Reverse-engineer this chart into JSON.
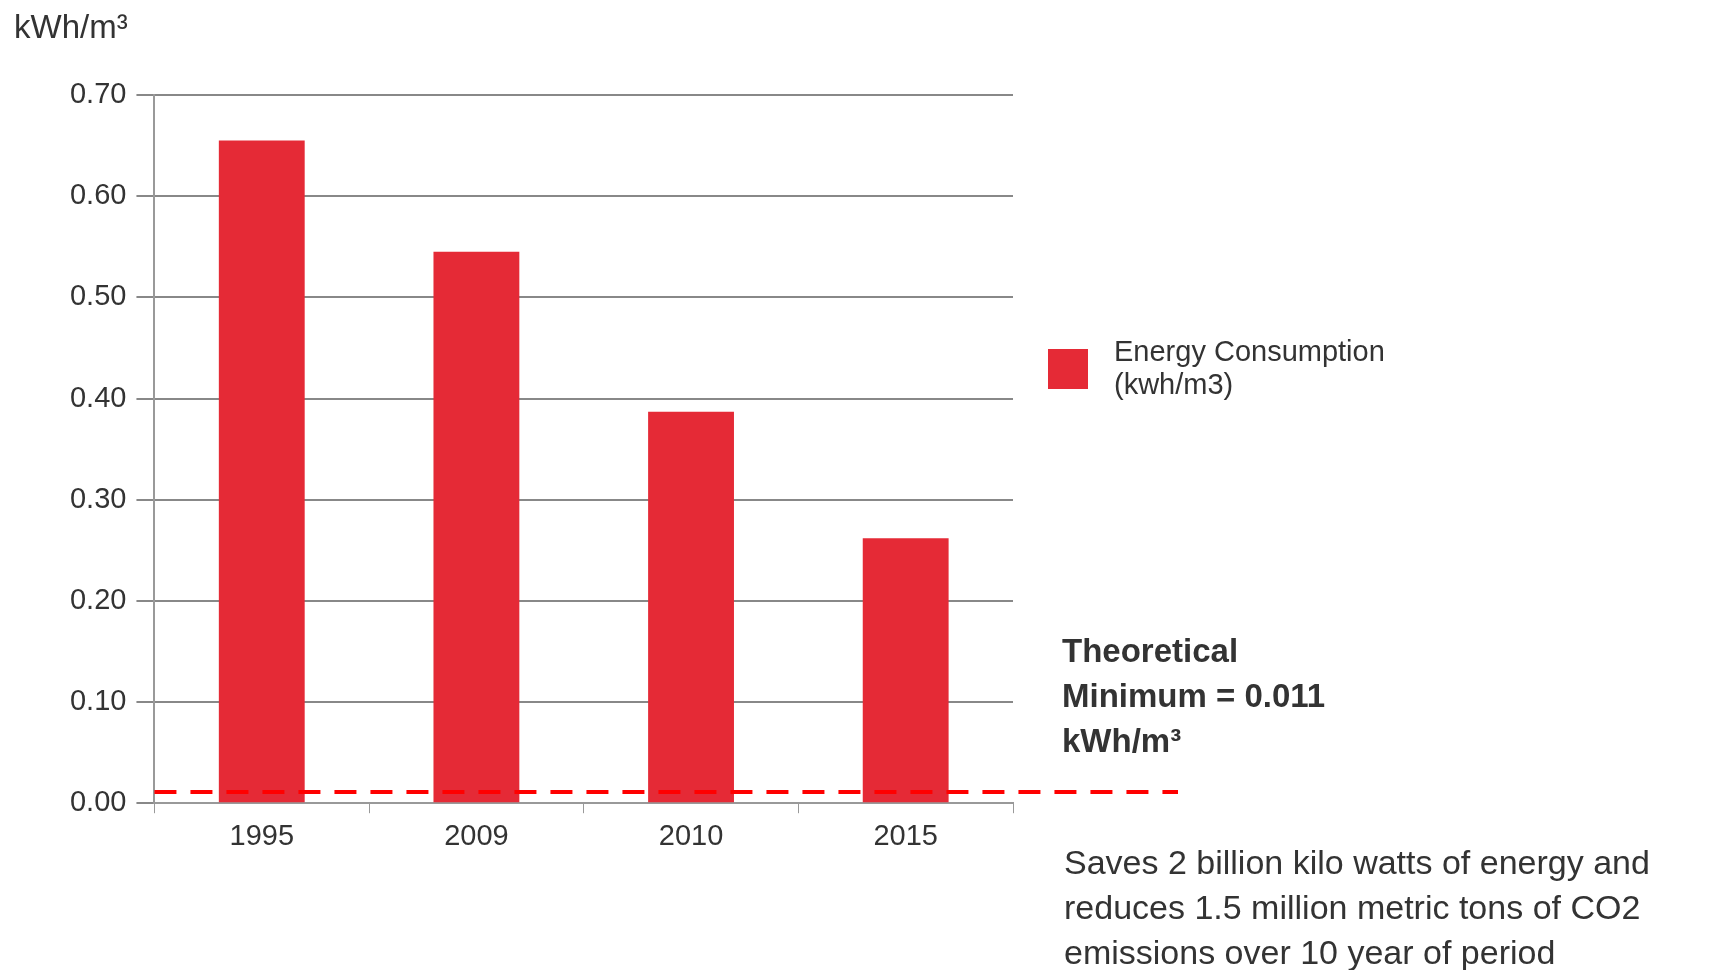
{
  "chart_data": {
    "type": "bar",
    "ylabel": "kWh/m³",
    "categories": [
      "1995",
      "2009",
      "2010",
      "2015"
    ],
    "series": [
      {
        "name": "Energy Consumption (kwh/m3)",
        "color": "#e52a36",
        "values": [
          0.655,
          0.545,
          0.387,
          0.262
        ]
      }
    ],
    "ylim": [
      0,
      0.7
    ],
    "yticks": [
      {
        "value": 0,
        "label": "0.00"
      },
      {
        "value": 0.1,
        "label": "0.10"
      },
      {
        "value": 0.2,
        "label": "0.20"
      },
      {
        "value": 0.3,
        "label": "0.30"
      },
      {
        "value": 0.4,
        "label": "0.40"
      },
      {
        "value": 0.5,
        "label": "0.50"
      },
      {
        "value": 0.6,
        "label": "0.60"
      },
      {
        "value": 0.7,
        "label": "0.70"
      }
    ],
    "grid": "y",
    "legend": "right",
    "ref_lines": [
      {
        "axis": "y",
        "value": 0.011,
        "label": "Theoretical Minimum = 0.011 kWh/m³",
        "color": "#ff0000",
        "line_style": "dashed"
      }
    ],
    "annotations": [
      "Saves 2 billion kilo watts of energy and reduces 1.5 million metric tons of CO2 emissions over  10 year of period"
    ]
  }
}
